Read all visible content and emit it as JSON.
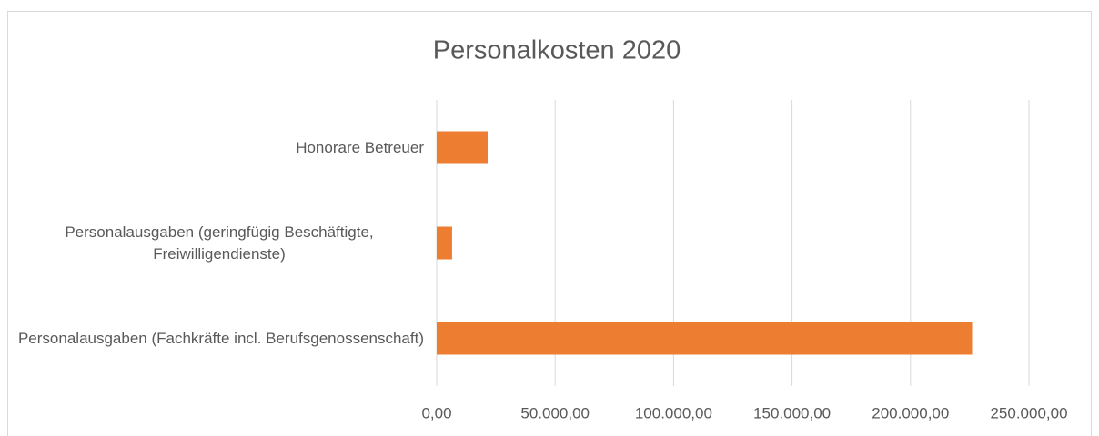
{
  "chart_data": {
    "type": "barh",
    "title": "Personalkosten 2020",
    "categories": [
      "Honorare Betreuer",
      "Personalausgaben (geringfügig Beschäftigte, Freiwilligendienste)",
      "Personalausgaben (Fachkräfte incl. Berufsgenossenschaft)"
    ],
    "values": [
      21500,
      6500,
      226000
    ],
    "color": "#ed7d31",
    "xlim": [
      0,
      250000
    ],
    "xticks": [
      {
        "value": 0,
        "label": "0,00"
      },
      {
        "value": 50000,
        "label": "50.000,00"
      },
      {
        "value": 100000,
        "label": "100.000,00"
      },
      {
        "value": 150000,
        "label": "150.000,00"
      },
      {
        "value": 200000,
        "label": "200.000,00"
      },
      {
        "value": 250000,
        "label": "250.000,00"
      }
    ],
    "grid": true
  }
}
